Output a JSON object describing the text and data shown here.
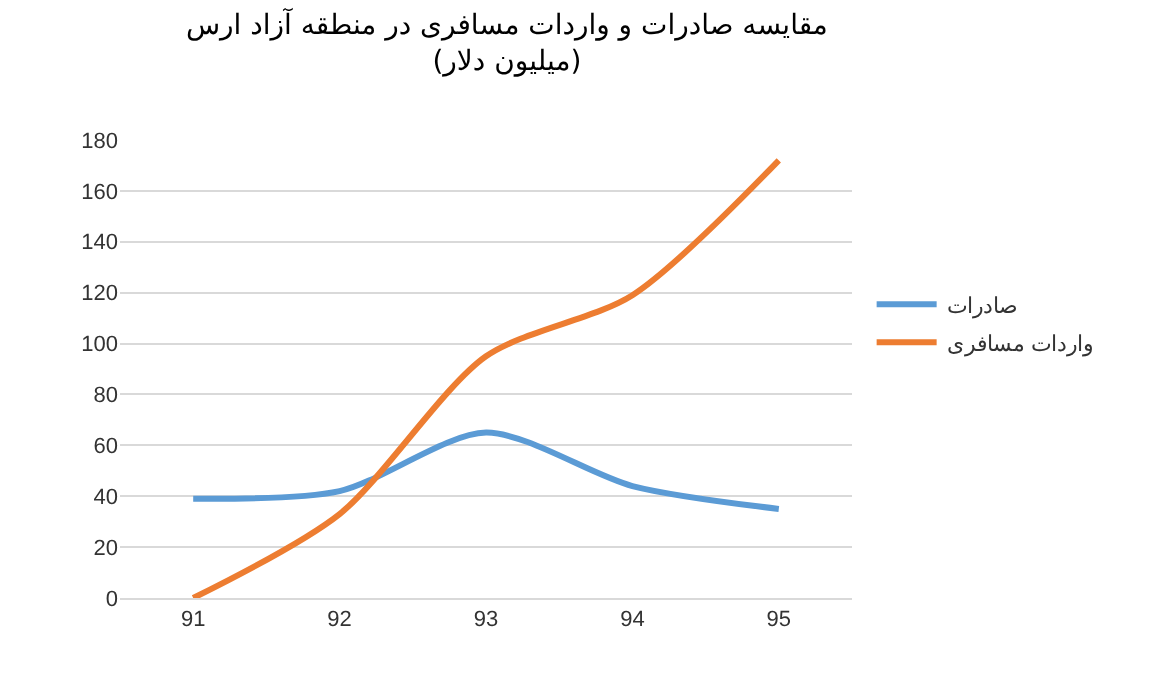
{
  "chart_data": {
    "type": "line",
    "title": "مقایسه صادرات و واردات مسافری در منطقه آزاد ارس\n(میلیون دلار)",
    "categories": [
      "91",
      "92",
      "93",
      "94",
      "95"
    ],
    "series": [
      {
        "name": "صادرات",
        "color": "#5b9bd5",
        "values": [
          39,
          42,
          65,
          44,
          35
        ]
      },
      {
        "name": "واردات مسافری",
        "color": "#ed7d31",
        "values": [
          0,
          33,
          95,
          119,
          172
        ]
      }
    ],
    "ylim": [
      0,
      180
    ],
    "yticks": [
      0,
      20,
      40,
      60,
      80,
      100,
      120,
      140,
      160,
      180
    ],
    "grid": "y",
    "legend": "right",
    "marker": "none",
    "line_style": "solid"
  }
}
